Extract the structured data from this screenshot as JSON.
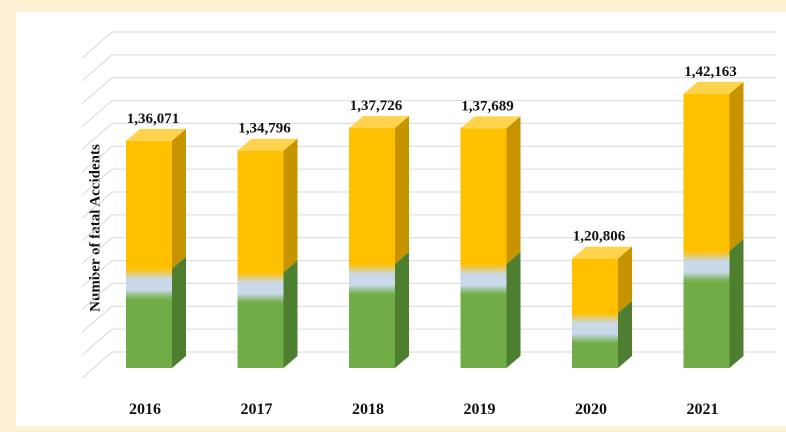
{
  "chart_data": {
    "type": "bar",
    "style": "3d-column",
    "title": "",
    "xlabel": "",
    "ylabel": "Number of fatal Accidents",
    "categories": [
      "2016",
      "2017",
      "2018",
      "2019",
      "2020",
      "2021"
    ],
    "values": [
      136071,
      134796,
      137726,
      137689,
      120806,
      142163
    ],
    "value_labels": [
      "1,36,071",
      "1,34,796",
      "1,37,726",
      "1,37,689",
      "1,20,806",
      "1,42,163"
    ],
    "ylim": [
      110000,
      145000
    ],
    "grid": true,
    "colors": {
      "bar_top_segment": "#ffc000",
      "bar_top_side": "#c79400",
      "bar_mid_band": "#c9d9ea",
      "bar_bottom_segment": "#70ad47",
      "bar_bottom_side": "#4e7f31",
      "gridline": "#d9d9d9"
    }
  }
}
